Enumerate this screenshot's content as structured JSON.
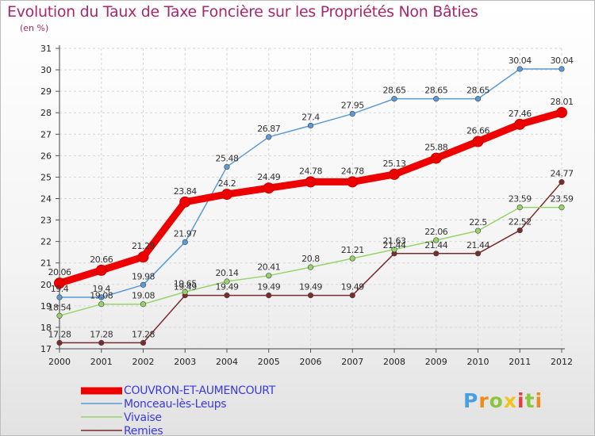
{
  "header": {
    "title": "Evolution du Taux de Taxe Foncière sur les Propriétés Non Bâties",
    "unit": "(en %)"
  },
  "brand": {
    "text": "Proxiti"
  },
  "chart_data": {
    "type": "line",
    "title": "Evolution du Taux de Taxe Foncière sur les Propriétés Non Bâties",
    "ylabel": "(en %)",
    "xlabel": "",
    "ylim": [
      17,
      31
    ],
    "yticks": [
      "17",
      "18",
      "19",
      "20",
      "21",
      "22",
      "23",
      "24",
      "25",
      "26",
      "27",
      "28",
      "29",
      "30",
      "31"
    ],
    "categories": [
      "2000",
      "2001",
      "2002",
      "2003",
      "2004",
      "2005",
      "2006",
      "2007",
      "2008",
      "2009",
      "2010",
      "2011",
      "2012"
    ],
    "grid": true,
    "series": [
      {
        "name": "COUVRON-ET-AUMENCOURT",
        "color": "#ee0000",
        "values": [
          20.06,
          20.66,
          21.28,
          23.84,
          24.2,
          24.49,
          24.78,
          24.78,
          25.13,
          25.88,
          26.66,
          27.46,
          28.01
        ],
        "labels": [
          "20.06",
          "20.66",
          "21.28",
          "23.84",
          "24.2",
          "24.49",
          "24.78",
          "24.78",
          "25.13",
          "25.88",
          "26.66",
          "27.46",
          "28.01"
        ]
      },
      {
        "name": "Monceau-lès-Leups",
        "color": "#5b9ad5",
        "values": [
          19.4,
          19.4,
          19.98,
          21.97,
          25.48,
          26.87,
          27.4,
          27.95,
          28.65,
          28.65,
          28.65,
          30.04,
          30.04
        ],
        "labels": [
          "19.4",
          "19.4",
          "19.98",
          "21.97",
          "25.48",
          "26.87",
          "27.4",
          "27.95",
          "28.65",
          "28.65",
          "28.65",
          "30.04",
          "30.04"
        ]
      },
      {
        "name": "Vivaise",
        "color": "#96d46a",
        "values": [
          18.54,
          19.08,
          19.08,
          19.65,
          20.14,
          20.41,
          20.8,
          21.21,
          21.63,
          22.06,
          22.5,
          23.59,
          23.59
        ],
        "labels": [
          "18.54",
          "19.08",
          "19.08",
          "19.65",
          "20.14",
          "20.41",
          "20.8",
          "21.21",
          "21.63",
          "22.06",
          "22.5",
          "23.59",
          "23.59"
        ]
      },
      {
        "name": "Remies",
        "color": "#7b2b2b",
        "values": [
          17.28,
          17.28,
          17.28,
          19.49,
          19.49,
          19.49,
          19.49,
          19.49,
          21.44,
          21.44,
          21.44,
          22.52,
          24.77
        ],
        "labels": [
          "17.28",
          "17.28",
          "17.28",
          "19.49",
          "19.49",
          "19.49",
          "19.49",
          "19.49",
          "21.44",
          "21.44",
          "21.44",
          "22.52",
          "24.77"
        ]
      }
    ]
  }
}
